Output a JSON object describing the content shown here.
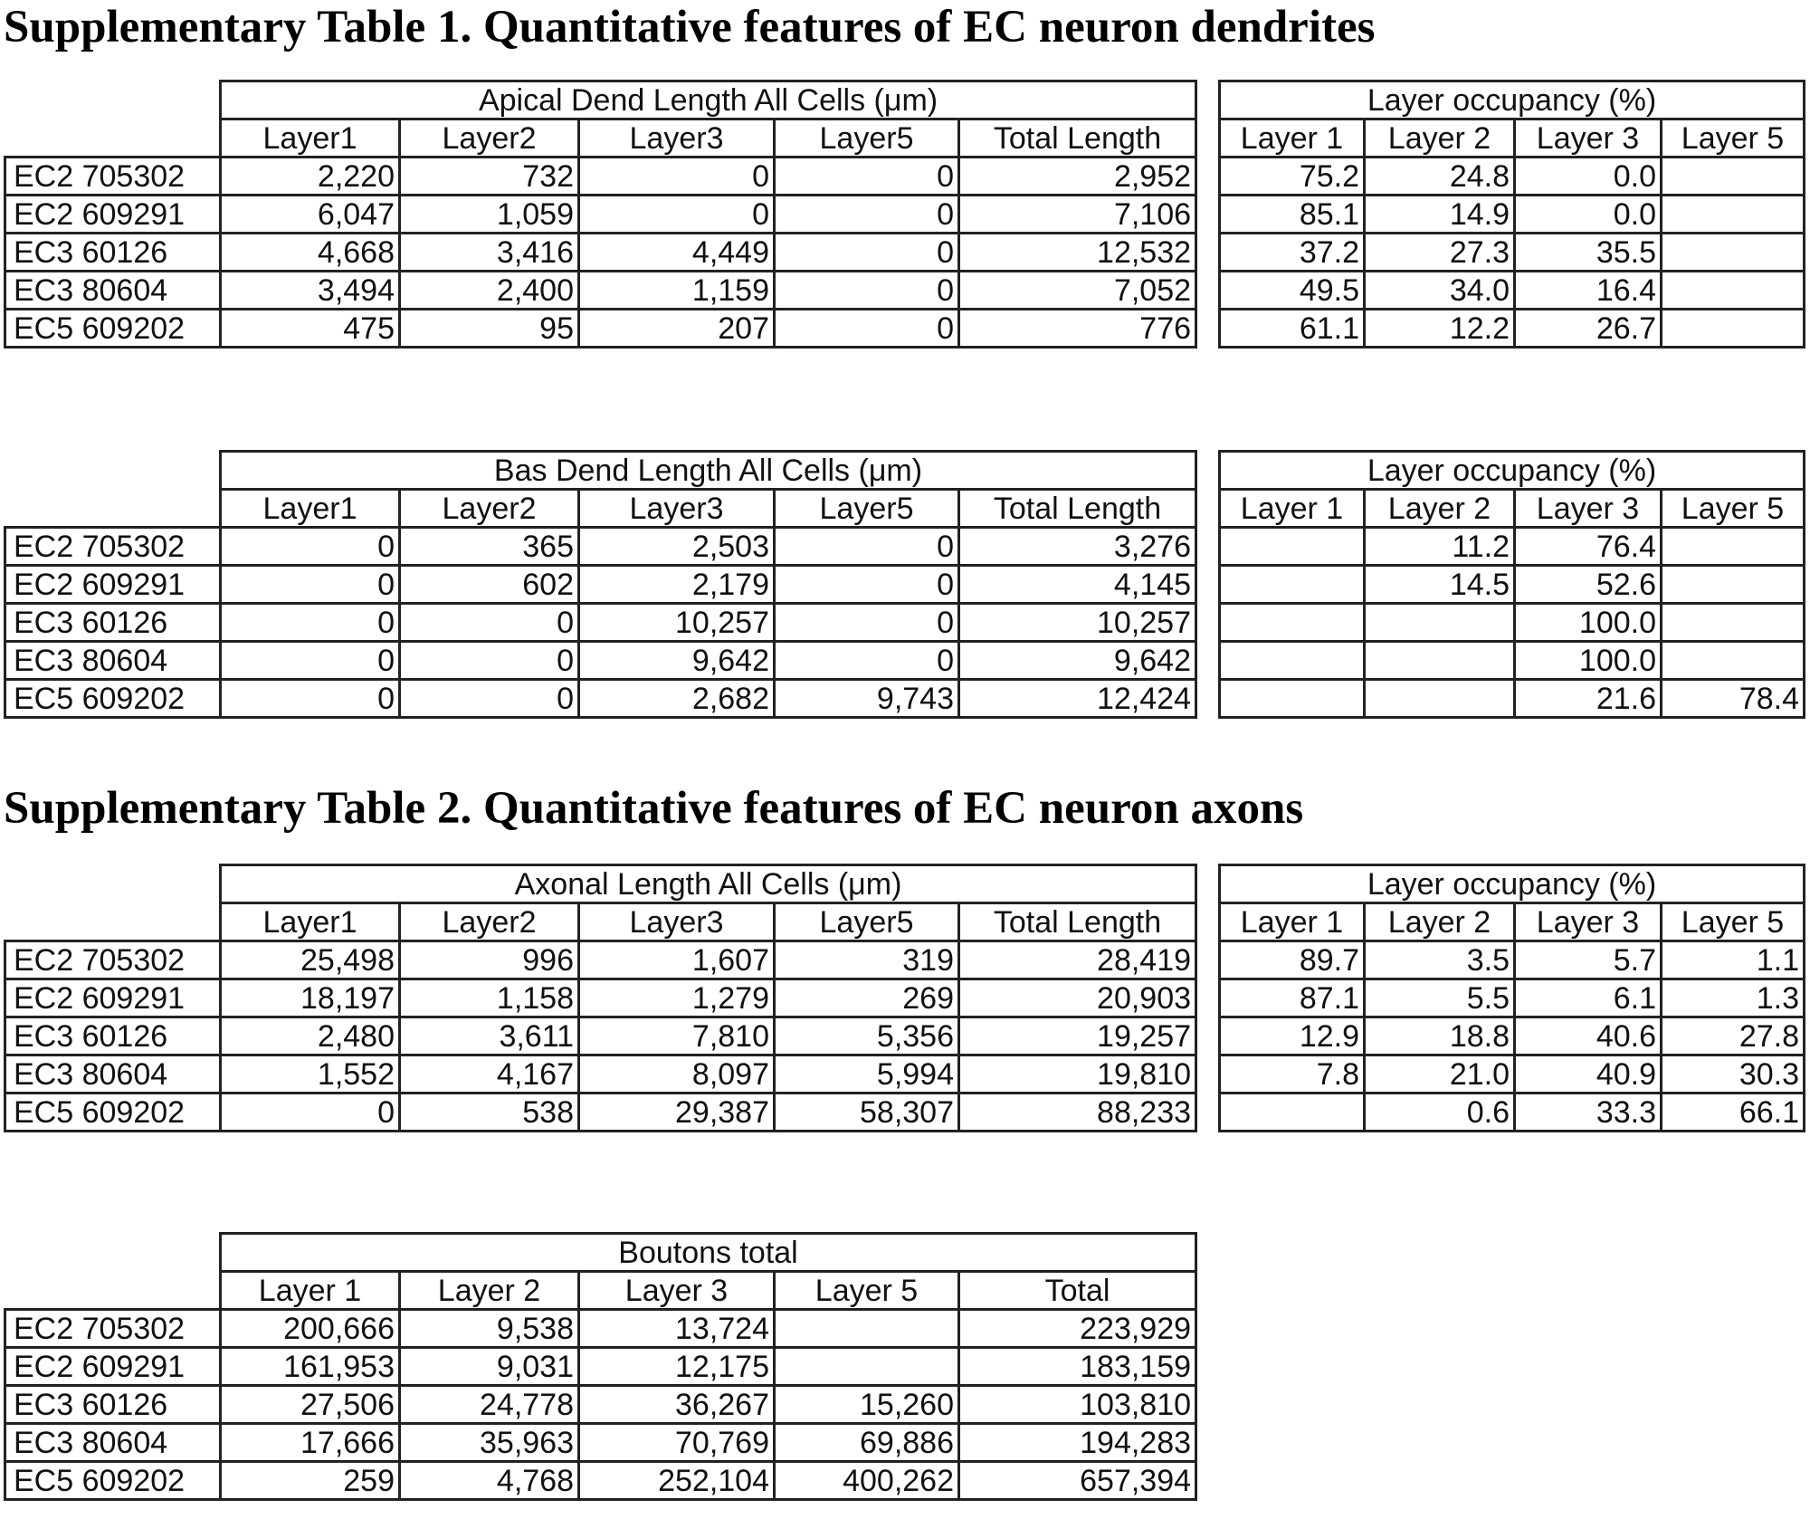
{
  "sections": [
    {
      "heading": "Supplementary Table 1. Quantitative features of EC neuron dendrites"
    },
    {
      "heading": "Supplementary Table 2. Quantitative features of EC neuron axons"
    }
  ],
  "tables": {
    "apical": {
      "title": "Apical Dend Length All Cells (μm)",
      "columns": [
        "Layer1",
        "Layer2",
        "Layer3",
        "Layer5",
        "Total Length"
      ],
      "rows": [
        {
          "cell": "EC2 705302",
          "values": [
            "2,220",
            "732",
            "0",
            "0",
            "2,952"
          ]
        },
        {
          "cell": "EC2 609291",
          "values": [
            "6,047",
            "1,059",
            "0",
            "0",
            "7,106"
          ]
        },
        {
          "cell": "EC3 60126",
          "values": [
            "4,668",
            "3,416",
            "4,449",
            "0",
            "12,532"
          ]
        },
        {
          "cell": "EC3 80604",
          "values": [
            "3,494",
            "2,400",
            "1,159",
            "0",
            "7,052"
          ]
        },
        {
          "cell": "EC5 609202",
          "values": [
            "475",
            "95",
            "207",
            "0",
            "776"
          ]
        }
      ]
    },
    "apical_occ": {
      "title": "Layer occupancy (%)",
      "columns": [
        "Layer 1",
        "Layer 2",
        "Layer 3",
        "Layer 5"
      ],
      "rows": [
        [
          "75.2",
          "24.8",
          "0.0",
          ""
        ],
        [
          "85.1",
          "14.9",
          "0.0",
          ""
        ],
        [
          "37.2",
          "27.3",
          "35.5",
          ""
        ],
        [
          "49.5",
          "34.0",
          "16.4",
          ""
        ],
        [
          "61.1",
          "12.2",
          "26.7",
          ""
        ]
      ]
    },
    "basal": {
      "title": "Bas Dend Length All Cells (μm)",
      "columns": [
        "Layer1",
        "Layer2",
        "Layer3",
        "Layer5",
        "Total Length"
      ],
      "rows": [
        {
          "cell": "EC2 705302",
          "values": [
            "0",
            "365",
            "2,503",
            "0",
            "3,276"
          ]
        },
        {
          "cell": "EC2 609291",
          "values": [
            "0",
            "602",
            "2,179",
            "0",
            "4,145"
          ]
        },
        {
          "cell": "EC3 60126",
          "values": [
            "0",
            "0",
            "10,257",
            "0",
            "10,257"
          ]
        },
        {
          "cell": "EC3 80604",
          "values": [
            "0",
            "0",
            "9,642",
            "0",
            "9,642"
          ]
        },
        {
          "cell": "EC5 609202",
          "values": [
            "0",
            "0",
            "2,682",
            "9,743",
            "12,424"
          ]
        }
      ]
    },
    "basal_occ": {
      "title": "Layer occupancy (%)",
      "columns": [
        "Layer 1",
        "Layer 2",
        "Layer 3",
        "Layer 5"
      ],
      "rows": [
        [
          "",
          "11.2",
          "76.4",
          ""
        ],
        [
          "",
          "14.5",
          "52.6",
          ""
        ],
        [
          "",
          "",
          "100.0",
          ""
        ],
        [
          "",
          "",
          "100.0",
          ""
        ],
        [
          "",
          "",
          "21.6",
          "78.4"
        ]
      ]
    },
    "axon": {
      "title": "Axonal Length All Cells (μm)",
      "columns": [
        "Layer1",
        "Layer2",
        "Layer3",
        "Layer5",
        "Total Length"
      ],
      "rows": [
        {
          "cell": "EC2 705302",
          "values": [
            "25,498",
            "996",
            "1,607",
            "319",
            "28,419"
          ]
        },
        {
          "cell": "EC2 609291",
          "values": [
            "18,197",
            "1,158",
            "1,279",
            "269",
            "20,903"
          ]
        },
        {
          "cell": "EC3 60126",
          "values": [
            "2,480",
            "3,611",
            "7,810",
            "5,356",
            "19,257"
          ]
        },
        {
          "cell": "EC3 80604",
          "values": [
            "1,552",
            "4,167",
            "8,097",
            "5,994",
            "19,810"
          ]
        },
        {
          "cell": "EC5 609202",
          "values": [
            "0",
            "538",
            "29,387",
            "58,307",
            "88,233"
          ]
        }
      ]
    },
    "axon_occ": {
      "title": "Layer occupancy (%)",
      "columns": [
        "Layer 1",
        "Layer 2",
        "Layer 3",
        "Layer 5"
      ],
      "rows": [
        [
          "89.7",
          "3.5",
          "5.7",
          "1.1"
        ],
        [
          "87.1",
          "5.5",
          "6.1",
          "1.3"
        ],
        [
          "12.9",
          "18.8",
          "40.6",
          "27.8"
        ],
        [
          "7.8",
          "21.0",
          "40.9",
          "30.3"
        ],
        [
          "",
          "0.6",
          "33.3",
          "66.1"
        ]
      ]
    },
    "boutons": {
      "title": "Boutons total",
      "columns": [
        "Layer 1",
        "Layer 2",
        "Layer 3",
        "Layer 5",
        "Total"
      ],
      "rows": [
        {
          "cell": "EC2 705302",
          "values": [
            "200,666",
            "9,538",
            "13,724",
            "",
            "223,929"
          ]
        },
        {
          "cell": "EC2 609291",
          "values": [
            "161,953",
            "9,031",
            "12,175",
            "",
            "183,159"
          ]
        },
        {
          "cell": "EC3 60126",
          "values": [
            "27,506",
            "24,778",
            "36,267",
            "15,260",
            "103,810"
          ]
        },
        {
          "cell": "EC3 80604",
          "values": [
            "17,666",
            "35,963",
            "70,769",
            "69,886",
            "194,283"
          ]
        },
        {
          "cell": "EC5 609202",
          "values": [
            "259",
            "4,768",
            "252,104",
            "400,262",
            "657,394"
          ]
        }
      ]
    }
  }
}
